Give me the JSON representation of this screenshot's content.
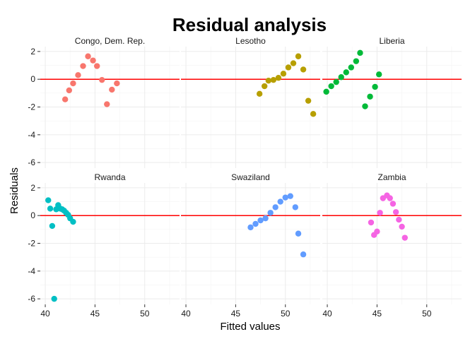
{
  "chart_data": {
    "type": "scatter",
    "title": "Residual analysis",
    "xlabel": "Fitted values",
    "ylabel": "Residuals",
    "xlim": [
      39.5,
      53.5
    ],
    "ylim": [
      -6.4,
      2.35
    ],
    "x_ticks": [
      40,
      45,
      50
    ],
    "y_ticks": [
      2,
      0,
      -2,
      -4,
      -6
    ],
    "x_tick_labels": [
      "40",
      "45",
      "50"
    ],
    "y_tick_labels": [
      "2",
      "0",
      "-2",
      "-4",
      "-6"
    ],
    "reference_line": 0,
    "reference_color": "#ff0000",
    "grid": true,
    "legend": "none",
    "panels": [
      {
        "name": "Congo, Dem. Rep.",
        "color": "#F8766D",
        "points": [
          [
            42.0,
            -1.45
          ],
          [
            42.4,
            -0.8
          ],
          [
            42.8,
            -0.3
          ],
          [
            43.3,
            0.3
          ],
          [
            43.8,
            0.95
          ],
          [
            44.3,
            1.65
          ],
          [
            44.8,
            1.35
          ],
          [
            45.2,
            0.95
          ],
          [
            45.7,
            -0.05
          ],
          [
            46.2,
            -1.8
          ],
          [
            46.7,
            -0.75
          ],
          [
            47.2,
            -0.3
          ]
        ]
      },
      {
        "name": "Lesotho",
        "color": "#B79F00",
        "points": [
          [
            47.4,
            -1.05
          ],
          [
            47.9,
            -0.5
          ],
          [
            48.3,
            -0.1
          ],
          [
            48.8,
            -0.05
          ],
          [
            49.3,
            0.1
          ],
          [
            49.8,
            0.4
          ],
          [
            50.3,
            0.85
          ],
          [
            50.8,
            1.15
          ],
          [
            51.3,
            1.65
          ],
          [
            51.8,
            0.7
          ],
          [
            52.3,
            -1.55
          ],
          [
            52.8,
            -2.5
          ]
        ]
      },
      {
        "name": "Liberia",
        "color": "#00BA38",
        "points": [
          [
            39.9,
            -0.9
          ],
          [
            40.4,
            -0.5
          ],
          [
            40.9,
            -0.2
          ],
          [
            41.4,
            0.15
          ],
          [
            41.9,
            0.5
          ],
          [
            42.4,
            0.85
          ],
          [
            42.9,
            1.3
          ],
          [
            43.3,
            1.9
          ],
          [
            43.8,
            -1.95
          ],
          [
            44.3,
            -1.25
          ],
          [
            44.8,
            -0.55
          ],
          [
            45.2,
            0.35
          ]
        ]
      },
      {
        "name": "Rwanda",
        "color": "#00BFC4",
        "points": [
          [
            40.3,
            1.1
          ],
          [
            40.5,
            0.5
          ],
          [
            40.7,
            -0.75
          ],
          [
            40.9,
            -6.0
          ],
          [
            41.1,
            0.45
          ],
          [
            41.3,
            0.75
          ],
          [
            41.5,
            0.5
          ],
          [
            41.7,
            0.45
          ],
          [
            41.9,
            0.35
          ],
          [
            42.1,
            0.2
          ],
          [
            42.3,
            0.05
          ],
          [
            42.5,
            -0.2
          ],
          [
            42.8,
            -0.45
          ]
        ]
      },
      {
        "name": "Swaziland",
        "color": "#619CFF",
        "points": [
          [
            46.5,
            -0.85
          ],
          [
            47.0,
            -0.6
          ],
          [
            47.5,
            -0.35
          ],
          [
            48.0,
            -0.2
          ],
          [
            48.5,
            0.2
          ],
          [
            49.0,
            0.6
          ],
          [
            49.5,
            1.0
          ],
          [
            50.0,
            1.3
          ],
          [
            50.5,
            1.4
          ],
          [
            51.0,
            0.6
          ],
          [
            51.3,
            -1.3
          ],
          [
            51.8,
            -2.8
          ]
        ]
      },
      {
        "name": "Zambia",
        "color": "#F564E3",
        "points": [
          [
            44.4,
            -0.5
          ],
          [
            44.7,
            -1.4
          ],
          [
            45.0,
            -1.15
          ],
          [
            45.3,
            0.2
          ],
          [
            45.6,
            1.25
          ],
          [
            46.0,
            1.45
          ],
          [
            46.3,
            1.25
          ],
          [
            46.6,
            0.85
          ],
          [
            46.9,
            0.25
          ],
          [
            47.2,
            -0.3
          ],
          [
            47.5,
            -0.8
          ],
          [
            47.8,
            -1.6
          ]
        ]
      }
    ]
  }
}
